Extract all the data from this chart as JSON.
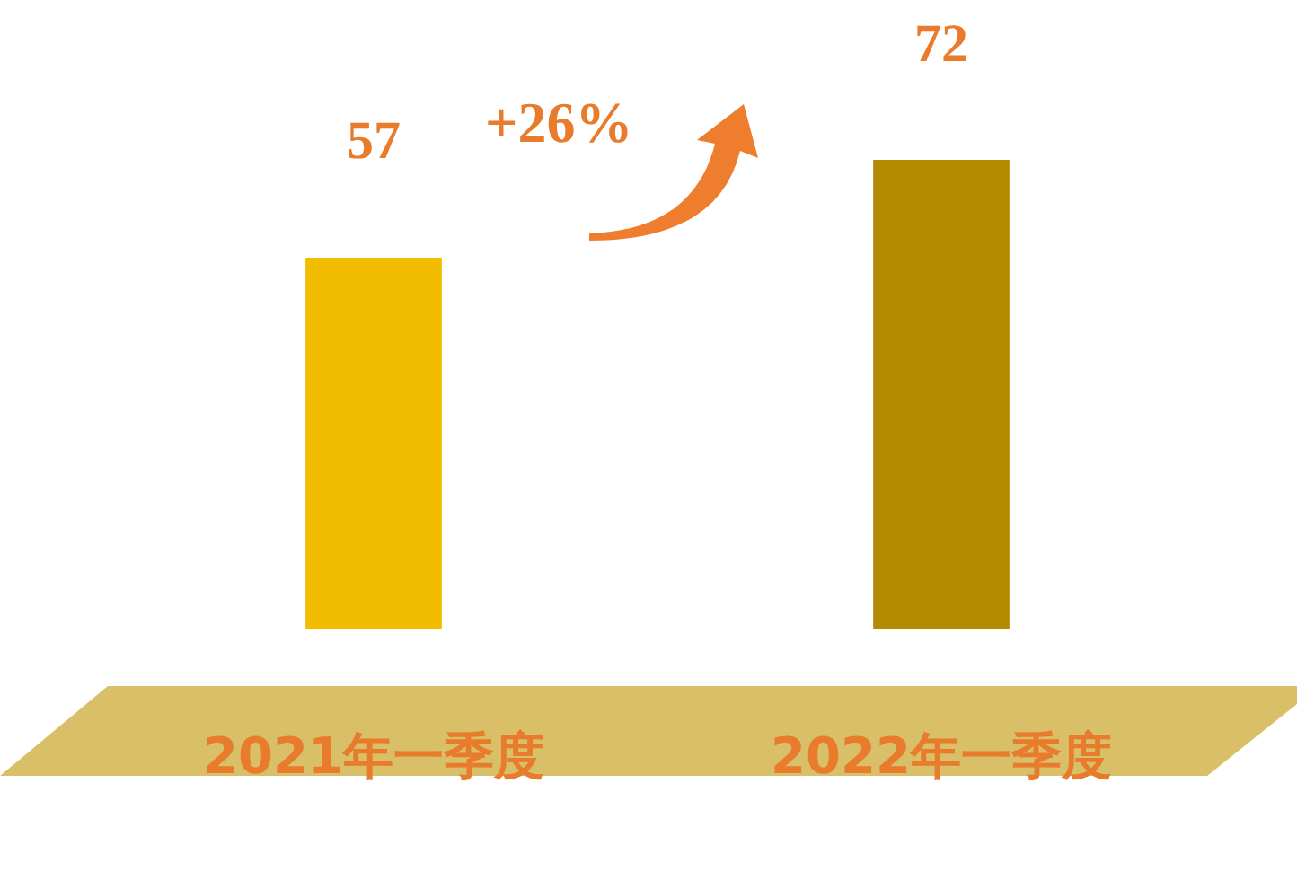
{
  "chart_data": {
    "type": "bar",
    "categories": [
      "2021年一季度",
      "2022年一季度"
    ],
    "values": [
      57,
      72
    ],
    "colors": [
      "#f2bc00",
      "#b38a00"
    ],
    "data_labels": true,
    "grid": false,
    "legend": false,
    "tick_labels": "x",
    "annotations": [
      "+26%"
    ]
  }
}
